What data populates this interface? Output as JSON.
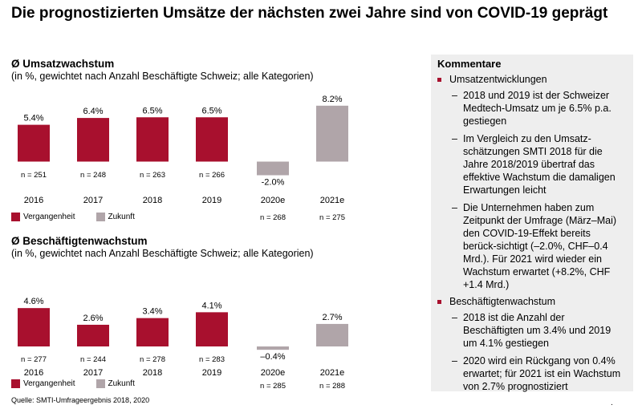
{
  "title": "Die prognostizierten Umsätze der nächsten zwei Jahre sind von COVID-19 geprägt",
  "colors": {
    "past": "#a8102e",
    "future": "#b0a5a9",
    "panel_bg": "#eeeeee"
  },
  "legend": {
    "past": "Vergangenheit",
    "future": "Zukunft"
  },
  "chart_data": [
    {
      "type": "bar",
      "title": "Ø Umsatzwachstum",
      "subtitle": "(in %, gewichtet nach Anzahl Beschäftigte Schweiz; alle Kategorien)",
      "categories": [
        "2016",
        "2017",
        "2018",
        "2019",
        "2020e",
        "2021e"
      ],
      "values": [
        5.4,
        6.4,
        6.5,
        6.5,
        -2.0,
        8.2
      ],
      "value_labels": [
        "5.4%",
        "6.4%",
        "6.5%",
        "6.5%",
        "-2.0%",
        "8.2%"
      ],
      "n_labels": [
        "n = 251",
        "n = 248",
        "n = 263",
        "n = 266",
        "n = 268",
        "n = 275"
      ],
      "kind": [
        "past",
        "past",
        "past",
        "past",
        "future",
        "future"
      ],
      "legend": [
        "Vergangenheit",
        "Zukunft"
      ]
    },
    {
      "type": "bar",
      "title": "Ø Beschäftigtenwachstum",
      "subtitle": "(in %, gewichtet nach Anzahl Beschäftigte Schweiz; alle Kategorien)",
      "categories": [
        "2016",
        "2017",
        "2018",
        "2019",
        "2020e",
        "2021e"
      ],
      "values": [
        4.6,
        2.6,
        3.4,
        4.1,
        -0.4,
        2.7
      ],
      "value_labels": [
        "4.6%",
        "2.6%",
        "3.4%",
        "4.1%",
        "–0.4%",
        "2.7%"
      ],
      "n_labels": [
        "n = 277",
        "n = 244",
        "n = 278",
        "n = 283",
        "n = 285",
        "n = 288"
      ],
      "kind": [
        "past",
        "past",
        "past",
        "past",
        "future",
        "future"
      ],
      "legend": [
        "Vergangenheit",
        "Zukunft"
      ]
    }
  ],
  "comments": {
    "title": "Kommentare",
    "sections": [
      {
        "heading": "Umsatzentwicklungen",
        "items": [
          "2018 und 2019 ist der Schweizer Medtech-Umsatz um je 6.5% p.a. gestiegen",
          "Im Vergleich zu den Umsatz-schätzungen SMTI 2018 für die Jahre 2018/2019 übertraf das effektive Wachstum die damaligen Erwartungen leicht",
          "Die Unternehmen haben zum Zeitpunkt der Umfrage (März–Mai) den COVID-19-Effekt bereits berück-sichtigt (–2.0%, CHF–0.4 Mrd.). Für 2021 wird wieder ein Wachstum erwartet (+8.2%, CHF +1.4 Mrd.)"
        ]
      },
      {
        "heading": "Beschäftigtenwachstum",
        "items": [
          "2018 ist die Anzahl der Beschäftigten um 3.4% und 2019 um 4.1% gestiegen",
          "2020 wird ein Rückgang von 0.4% erwartet; für 2021 ist ein Wachstum von 2.7% prognostiziert"
        ]
      }
    ]
  },
  "source": "Quelle: SMTI-Umfrageergebnis 2018, 2020",
  "corner_mark": "."
}
